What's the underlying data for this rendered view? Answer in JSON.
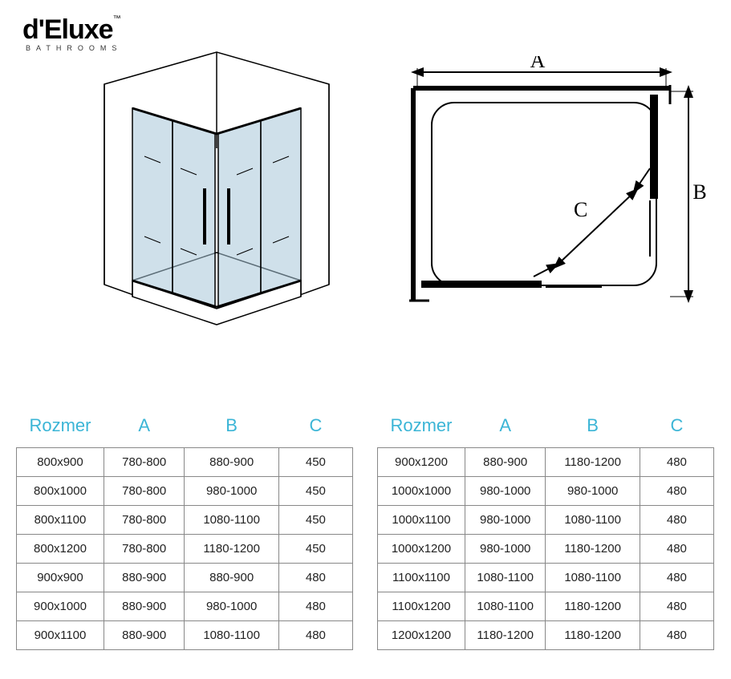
{
  "brand": {
    "name": "d'Eluxe",
    "trademark": "™",
    "subtitle": "BATHROOMS"
  },
  "diagram": {
    "label_A": "A",
    "label_B": "B",
    "label_C": "C",
    "iso_stroke": "#000000",
    "iso_glass_fill": "#a8c6d8",
    "iso_glass_opacity": 0.55,
    "plan_stroke": "#000000",
    "plan_stroke_width": 3,
    "label_fontsize": 26,
    "label_font": "serif",
    "arrowhead_size": 8
  },
  "tables": {
    "header_color": "#3bb5d6",
    "header_fontsize": 22,
    "cell_fontsize": 15,
    "border_color": "#888888",
    "text_color": "#222222",
    "columns": [
      "Rozmer",
      "A",
      "B",
      "C"
    ],
    "left_rows": [
      [
        "800x900",
        "780-800",
        "880-900",
        "450"
      ],
      [
        "800x1000",
        "780-800",
        "980-1000",
        "450"
      ],
      [
        "800x1100",
        "780-800",
        "1080-1100",
        "450"
      ],
      [
        "800x1200",
        "780-800",
        "1180-1200",
        "450"
      ],
      [
        "900x900",
        "880-900",
        "880-900",
        "480"
      ],
      [
        "900x1000",
        "880-900",
        "980-1000",
        "480"
      ],
      [
        "900x1100",
        "880-900",
        "1080-1100",
        "480"
      ]
    ],
    "right_rows": [
      [
        "900x1200",
        "880-900",
        "1180-1200",
        "480"
      ],
      [
        "1000x1000",
        "980-1000",
        "980-1000",
        "480"
      ],
      [
        "1000x1100",
        "980-1000",
        "1080-1100",
        "480"
      ],
      [
        "1000x1200",
        "980-1000",
        "1180-1200",
        "480"
      ],
      [
        "1100x1100",
        "1080-1100",
        "1080-1100",
        "480"
      ],
      [
        "1100x1200",
        "1080-1100",
        "1180-1200",
        "480"
      ],
      [
        "1200x1200",
        "1180-1200",
        "1180-1200",
        "480"
      ]
    ]
  }
}
